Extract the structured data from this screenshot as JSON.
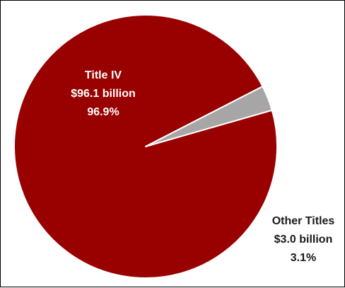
{
  "chart_data": {
    "type": "pie",
    "slices": [
      {
        "name": "Title IV",
        "amount": "$96.1 billion",
        "percent_label": "96.9%",
        "value": 96.9,
        "color": "#990000"
      },
      {
        "name": "Other Titles",
        "amount": "$3.0 billion",
        "percent_label": "3.1%",
        "value": 3.1,
        "color": "#A6A6A6"
      }
    ],
    "legend": "none",
    "data_labels": "name, amount, percent"
  }
}
